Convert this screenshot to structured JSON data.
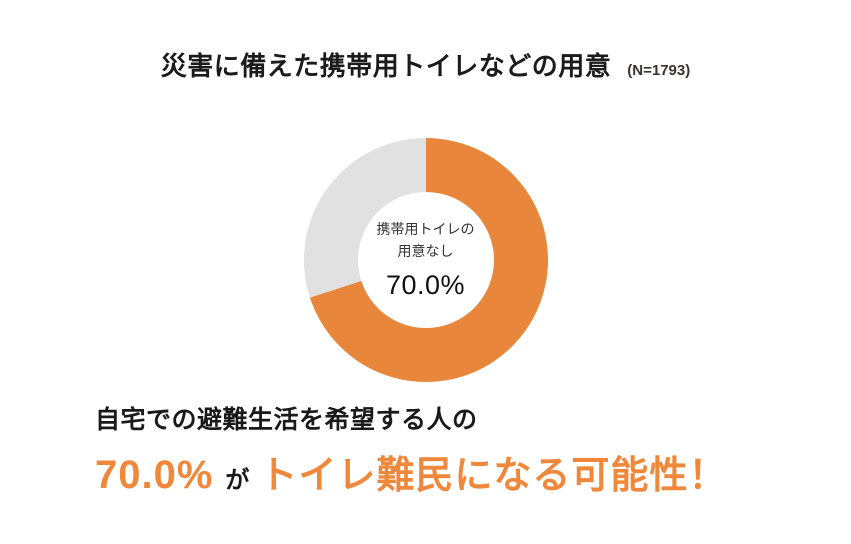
{
  "header": {
    "title": "災害に備えた携帯用トイレなどの用意",
    "sample_size": "(N=1793)"
  },
  "chart_data": {
    "type": "pie",
    "variant": "donut",
    "title": "災害に備えた携帯用トイレなどの用意",
    "sample_size_label": "(N=1793)",
    "n": 1793,
    "start_angle_deg": 0,
    "direction": "clockwise",
    "legend": "none",
    "slices": [
      {
        "label": "携帯用トイレの用意なし",
        "value": 70.0,
        "color": "#E8873B"
      },
      {
        "label": "",
        "value": 30.0,
        "color": "#E1E1E1"
      }
    ],
    "center_label": {
      "line1": "携帯用トイレの",
      "line2": "用意なし",
      "value": "70.0%"
    }
  },
  "footer": {
    "line1": "自宅での避難生活を希望する人の",
    "line2_percent": "70.0%",
    "line2_particle": "が",
    "line2_emphasis": "トイレ難民になる可能性！"
  },
  "colors": {
    "accent_orange": "#E8873B",
    "text_orange": "#F0883C",
    "neutral_gray": "#E1E1E1",
    "text_black": "#1A1A1A",
    "background": "#FFFFFF"
  }
}
